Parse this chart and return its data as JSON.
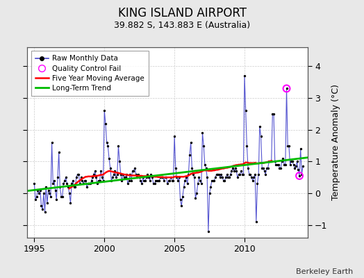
{
  "title": "KING ISLAND AIRPORT",
  "subtitle": "39.882 S, 143.883 E (Australia)",
  "ylabel": "Temperature Anomaly (°C)",
  "credit": "Berkeley Earth",
  "xlim": [
    1994.5,
    2014.5
  ],
  "ylim": [
    -1.4,
    4.6
  ],
  "yticks": [
    -1,
    0,
    1,
    2,
    3,
    4
  ],
  "xticks": [
    1995,
    2000,
    2005,
    2010
  ],
  "bg_color": "#e8e8e8",
  "plot_bg_color": "#ffffff",
  "raw_color": "#4444cc",
  "raw_dot_color": "#000000",
  "qc_fail_color": "#ff00ff",
  "moving_avg_color": "#ff0000",
  "trend_color": "#00bb00",
  "raw_monthly": [
    [
      1995.0,
      0.3
    ],
    [
      1995.083,
      -0.2
    ],
    [
      1995.167,
      -0.1
    ],
    [
      1995.25,
      0.1
    ],
    [
      1995.333,
      0.0
    ],
    [
      1995.417,
      0.1
    ],
    [
      1995.5,
      -0.4
    ],
    [
      1995.583,
      -0.5
    ],
    [
      1995.667,
      0.0
    ],
    [
      1995.75,
      -0.6
    ],
    [
      1995.833,
      0.2
    ],
    [
      1995.917,
      -0.3
    ],
    [
      1996.0,
      0.1
    ],
    [
      1996.083,
      0.0
    ],
    [
      1996.167,
      -0.1
    ],
    [
      1996.25,
      1.6
    ],
    [
      1996.333,
      0.3
    ],
    [
      1996.417,
      0.4
    ],
    [
      1996.5,
      0.1
    ],
    [
      1996.583,
      -0.2
    ],
    [
      1996.667,
      0.5
    ],
    [
      1996.75,
      1.3
    ],
    [
      1996.833,
      0.2
    ],
    [
      1996.917,
      -0.1
    ],
    [
      1997.0,
      -0.1
    ],
    [
      1997.083,
      0.3
    ],
    [
      1997.167,
      0.4
    ],
    [
      1997.25,
      0.5
    ],
    [
      1997.333,
      0.3
    ],
    [
      1997.417,
      0.2
    ],
    [
      1997.5,
      0.0
    ],
    [
      1997.583,
      -0.3
    ],
    [
      1997.667,
      0.3
    ],
    [
      1997.75,
      0.4
    ],
    [
      1997.833,
      0.2
    ],
    [
      1997.917,
      0.2
    ],
    [
      1998.0,
      0.5
    ],
    [
      1998.083,
      0.6
    ],
    [
      1998.167,
      0.6
    ],
    [
      1998.25,
      0.3
    ],
    [
      1998.333,
      0.5
    ],
    [
      1998.417,
      0.4
    ],
    [
      1998.5,
      0.3
    ],
    [
      1998.583,
      0.4
    ],
    [
      1998.667,
      0.4
    ],
    [
      1998.75,
      0.2
    ],
    [
      1998.833,
      0.3
    ],
    [
      1998.917,
      0.3
    ],
    [
      1999.0,
      0.3
    ],
    [
      1999.083,
      0.4
    ],
    [
      1999.167,
      0.5
    ],
    [
      1999.25,
      0.6
    ],
    [
      1999.333,
      0.7
    ],
    [
      1999.417,
      0.5
    ],
    [
      1999.5,
      0.3
    ],
    [
      1999.583,
      0.4
    ],
    [
      1999.667,
      0.4
    ],
    [
      1999.75,
      0.7
    ],
    [
      1999.833,
      0.5
    ],
    [
      1999.917,
      0.4
    ],
    [
      2000.0,
      2.6
    ],
    [
      2000.083,
      2.2
    ],
    [
      2000.167,
      1.6
    ],
    [
      2000.25,
      1.5
    ],
    [
      2000.333,
      1.1
    ],
    [
      2000.417,
      0.8
    ],
    [
      2000.5,
      0.4
    ],
    [
      2000.583,
      0.5
    ],
    [
      2000.667,
      0.6
    ],
    [
      2000.75,
      0.7
    ],
    [
      2000.833,
      0.5
    ],
    [
      2000.917,
      0.6
    ],
    [
      2001.0,
      1.5
    ],
    [
      2001.083,
      1.0
    ],
    [
      2001.167,
      0.6
    ],
    [
      2001.25,
      0.4
    ],
    [
      2001.333,
      0.6
    ],
    [
      2001.417,
      0.5
    ],
    [
      2001.5,
      0.5
    ],
    [
      2001.583,
      0.6
    ],
    [
      2001.667,
      0.3
    ],
    [
      2001.75,
      0.4
    ],
    [
      2001.833,
      0.6
    ],
    [
      2001.917,
      0.4
    ],
    [
      2002.0,
      0.7
    ],
    [
      2002.083,
      0.7
    ],
    [
      2002.167,
      0.8
    ],
    [
      2002.25,
      0.6
    ],
    [
      2002.333,
      0.5
    ],
    [
      2002.417,
      0.6
    ],
    [
      2002.5,
      0.5
    ],
    [
      2002.583,
      0.4
    ],
    [
      2002.667,
      0.3
    ],
    [
      2002.75,
      0.5
    ],
    [
      2002.833,
      0.4
    ],
    [
      2002.917,
      0.4
    ],
    [
      2003.0,
      0.5
    ],
    [
      2003.083,
      0.6
    ],
    [
      2003.167,
      0.5
    ],
    [
      2003.25,
      0.4
    ],
    [
      2003.333,
      0.6
    ],
    [
      2003.417,
      0.5
    ],
    [
      2003.5,
      0.3
    ],
    [
      2003.583,
      0.3
    ],
    [
      2003.667,
      0.4
    ],
    [
      2003.75,
      0.4
    ],
    [
      2003.833,
      0.4
    ],
    [
      2003.917,
      0.4
    ],
    [
      2004.0,
      0.5
    ],
    [
      2004.083,
      0.5
    ],
    [
      2004.167,
      0.5
    ],
    [
      2004.25,
      0.4
    ],
    [
      2004.333,
      0.5
    ],
    [
      2004.417,
      0.5
    ],
    [
      2004.5,
      0.3
    ],
    [
      2004.583,
      0.4
    ],
    [
      2004.667,
      0.4
    ],
    [
      2004.75,
      0.5
    ],
    [
      2004.833,
      0.4
    ],
    [
      2004.917,
      0.4
    ],
    [
      2005.0,
      1.8
    ],
    [
      2005.083,
      0.8
    ],
    [
      2005.167,
      0.5
    ],
    [
      2005.25,
      0.4
    ],
    [
      2005.333,
      0.5
    ],
    [
      2005.417,
      -0.2
    ],
    [
      2005.5,
      -0.4
    ],
    [
      2005.583,
      -0.1
    ],
    [
      2005.667,
      0.2
    ],
    [
      2005.75,
      0.4
    ],
    [
      2005.833,
      0.5
    ],
    [
      2005.917,
      0.3
    ],
    [
      2006.0,
      0.6
    ],
    [
      2006.083,
      1.2
    ],
    [
      2006.167,
      1.6
    ],
    [
      2006.25,
      0.8
    ],
    [
      2006.333,
      0.6
    ],
    [
      2006.417,
      0.5
    ],
    [
      2006.5,
      -0.15
    ],
    [
      2006.583,
      0.0
    ],
    [
      2006.667,
      0.3
    ],
    [
      2006.75,
      0.5
    ],
    [
      2006.833,
      0.4
    ],
    [
      2006.917,
      0.3
    ],
    [
      2007.0,
      1.9
    ],
    [
      2007.083,
      1.5
    ],
    [
      2007.167,
      0.9
    ],
    [
      2007.25,
      0.8
    ],
    [
      2007.333,
      0.5
    ],
    [
      2007.417,
      -1.2
    ],
    [
      2007.5,
      0.0
    ],
    [
      2007.583,
      0.2
    ],
    [
      2007.667,
      0.4
    ],
    [
      2007.75,
      0.4
    ],
    [
      2007.833,
      0.4
    ],
    [
      2007.917,
      0.5
    ],
    [
      2008.0,
      0.6
    ],
    [
      2008.083,
      0.6
    ],
    [
      2008.167,
      0.6
    ],
    [
      2008.25,
      0.5
    ],
    [
      2008.333,
      0.6
    ],
    [
      2008.417,
      0.5
    ],
    [
      2008.5,
      0.4
    ],
    [
      2008.583,
      0.4
    ],
    [
      2008.667,
      0.5
    ],
    [
      2008.75,
      0.6
    ],
    [
      2008.833,
      0.5
    ],
    [
      2008.917,
      0.5
    ],
    [
      2009.0,
      0.6
    ],
    [
      2009.083,
      0.7
    ],
    [
      2009.167,
      0.8
    ],
    [
      2009.25,
      0.7
    ],
    [
      2009.333,
      0.8
    ],
    [
      2009.417,
      0.7
    ],
    [
      2009.5,
      0.5
    ],
    [
      2009.583,
      0.6
    ],
    [
      2009.667,
      0.6
    ],
    [
      2009.75,
      0.7
    ],
    [
      2009.833,
      0.6
    ],
    [
      2009.917,
      0.6
    ],
    [
      2010.0,
      3.7
    ],
    [
      2010.083,
      2.6
    ],
    [
      2010.167,
      1.5
    ],
    [
      2010.25,
      0.8
    ],
    [
      2010.333,
      0.6
    ],
    [
      2010.417,
      0.6
    ],
    [
      2010.5,
      0.5
    ],
    [
      2010.583,
      0.4
    ],
    [
      2010.667,
      0.5
    ],
    [
      2010.75,
      0.6
    ],
    [
      2010.833,
      -0.9
    ],
    [
      2010.917,
      0.3
    ],
    [
      2011.0,
      0.6
    ],
    [
      2011.083,
      2.1
    ],
    [
      2011.167,
      1.8
    ],
    [
      2011.25,
      0.8
    ],
    [
      2011.333,
      0.8
    ],
    [
      2011.417,
      0.7
    ],
    [
      2011.5,
      0.6
    ],
    [
      2011.583,
      0.8
    ],
    [
      2011.667,
      0.8
    ],
    [
      2011.75,
      1.0
    ],
    [
      2011.833,
      1.0
    ],
    [
      2011.917,
      1.0
    ],
    [
      2012.0,
      2.5
    ],
    [
      2012.083,
      2.5
    ],
    [
      2012.167,
      1.0
    ],
    [
      2012.25,
      0.9
    ],
    [
      2012.333,
      0.9
    ],
    [
      2012.417,
      0.9
    ],
    [
      2012.5,
      0.8
    ],
    [
      2012.583,
      0.8
    ],
    [
      2012.667,
      1.0
    ],
    [
      2012.75,
      1.1
    ],
    [
      2012.833,
      0.9
    ],
    [
      2012.917,
      0.9
    ],
    [
      2013.0,
      3.3
    ],
    [
      2013.083,
      1.5
    ],
    [
      2013.167,
      1.5
    ],
    [
      2013.25,
      0.9
    ],
    [
      2013.333,
      1.0
    ],
    [
      2013.417,
      1.0
    ],
    [
      2013.5,
      0.9
    ],
    [
      2013.583,
      0.8
    ],
    [
      2013.667,
      0.85
    ],
    [
      2013.75,
      1.0
    ],
    [
      2013.833,
      0.75
    ],
    [
      2013.917,
      0.55
    ],
    [
      2014.0,
      1.4
    ],
    [
      2014.083,
      0.6
    ],
    [
      2014.167,
      0.85
    ]
  ],
  "qc_fail_points": [
    [
      2013.0,
      3.3
    ],
    [
      2013.917,
      0.55
    ]
  ],
  "moving_avg": [
    [
      1997.5,
      0.15
    ],
    [
      1997.583,
      0.18
    ],
    [
      1997.667,
      0.2
    ],
    [
      1997.75,
      0.22
    ],
    [
      1997.833,
      0.25
    ],
    [
      1997.917,
      0.28
    ],
    [
      1998.0,
      0.32
    ],
    [
      1998.083,
      0.35
    ],
    [
      1998.167,
      0.38
    ],
    [
      1998.25,
      0.4
    ],
    [
      1998.333,
      0.43
    ],
    [
      1998.417,
      0.46
    ],
    [
      1998.5,
      0.48
    ],
    [
      1998.583,
      0.5
    ],
    [
      1998.667,
      0.52
    ],
    [
      1998.75,
      0.52
    ],
    [
      1998.833,
      0.53
    ],
    [
      1998.917,
      0.53
    ],
    [
      1999.0,
      0.53
    ],
    [
      1999.083,
      0.53
    ],
    [
      1999.167,
      0.54
    ],
    [
      1999.25,
      0.54
    ],
    [
      1999.333,
      0.54
    ],
    [
      1999.417,
      0.55
    ],
    [
      1999.5,
      0.55
    ],
    [
      1999.583,
      0.56
    ],
    [
      1999.667,
      0.57
    ],
    [
      1999.75,
      0.58
    ],
    [
      1999.833,
      0.58
    ],
    [
      1999.917,
      0.59
    ],
    [
      2000.0,
      0.62
    ],
    [
      2000.083,
      0.65
    ],
    [
      2000.167,
      0.67
    ],
    [
      2000.25,
      0.69
    ],
    [
      2000.333,
      0.7
    ],
    [
      2000.417,
      0.7
    ],
    [
      2000.5,
      0.69
    ],
    [
      2000.583,
      0.68
    ],
    [
      2000.667,
      0.67
    ],
    [
      2000.75,
      0.66
    ],
    [
      2000.833,
      0.65
    ],
    [
      2000.917,
      0.65
    ],
    [
      2001.0,
      0.64
    ],
    [
      2001.083,
      0.63
    ],
    [
      2001.167,
      0.62
    ],
    [
      2001.25,
      0.61
    ],
    [
      2001.333,
      0.6
    ],
    [
      2001.417,
      0.59
    ],
    [
      2001.5,
      0.59
    ],
    [
      2001.583,
      0.58
    ],
    [
      2001.667,
      0.57
    ],
    [
      2001.75,
      0.57
    ],
    [
      2001.833,
      0.57
    ],
    [
      2001.917,
      0.56
    ],
    [
      2002.0,
      0.56
    ],
    [
      2002.083,
      0.56
    ],
    [
      2002.167,
      0.56
    ],
    [
      2002.25,
      0.56
    ],
    [
      2002.333,
      0.55
    ],
    [
      2002.417,
      0.55
    ],
    [
      2002.5,
      0.55
    ],
    [
      2002.583,
      0.55
    ],
    [
      2002.667,
      0.55
    ],
    [
      2002.75,
      0.54
    ],
    [
      2002.833,
      0.54
    ],
    [
      2002.917,
      0.54
    ],
    [
      2003.0,
      0.54
    ],
    [
      2003.083,
      0.54
    ],
    [
      2003.167,
      0.54
    ],
    [
      2003.25,
      0.53
    ],
    [
      2003.333,
      0.53
    ],
    [
      2003.417,
      0.53
    ],
    [
      2003.5,
      0.53
    ],
    [
      2003.583,
      0.52
    ],
    [
      2003.667,
      0.52
    ],
    [
      2003.75,
      0.52
    ],
    [
      2003.833,
      0.51
    ],
    [
      2003.917,
      0.51
    ],
    [
      2004.0,
      0.51
    ],
    [
      2004.083,
      0.51
    ],
    [
      2004.167,
      0.51
    ],
    [
      2004.25,
      0.5
    ],
    [
      2004.333,
      0.5
    ],
    [
      2004.417,
      0.5
    ],
    [
      2004.5,
      0.5
    ],
    [
      2004.583,
      0.5
    ],
    [
      2004.667,
      0.5
    ],
    [
      2004.75,
      0.5
    ],
    [
      2004.833,
      0.5
    ],
    [
      2004.917,
      0.5
    ],
    [
      2005.0,
      0.52
    ],
    [
      2005.083,
      0.53
    ],
    [
      2005.167,
      0.52
    ],
    [
      2005.25,
      0.52
    ],
    [
      2005.333,
      0.52
    ],
    [
      2005.417,
      0.52
    ],
    [
      2005.5,
      0.52
    ],
    [
      2005.583,
      0.52
    ],
    [
      2005.667,
      0.52
    ],
    [
      2005.75,
      0.53
    ],
    [
      2005.833,
      0.54
    ],
    [
      2005.917,
      0.54
    ],
    [
      2006.0,
      0.56
    ],
    [
      2006.083,
      0.58
    ],
    [
      2006.167,
      0.61
    ],
    [
      2006.25,
      0.62
    ],
    [
      2006.333,
      0.63
    ],
    [
      2006.417,
      0.64
    ],
    [
      2006.5,
      0.64
    ],
    [
      2006.583,
      0.65
    ],
    [
      2006.667,
      0.65
    ],
    [
      2006.75,
      0.66
    ],
    [
      2006.833,
      0.67
    ],
    [
      2006.917,
      0.68
    ],
    [
      2007.0,
      0.7
    ],
    [
      2007.083,
      0.72
    ],
    [
      2007.167,
      0.72
    ],
    [
      2007.25,
      0.72
    ],
    [
      2007.333,
      0.72
    ],
    [
      2007.417,
      0.71
    ],
    [
      2007.5,
      0.71
    ],
    [
      2007.583,
      0.71
    ],
    [
      2007.667,
      0.71
    ],
    [
      2007.75,
      0.72
    ],
    [
      2007.833,
      0.72
    ],
    [
      2007.917,
      0.73
    ],
    [
      2008.0,
      0.74
    ],
    [
      2008.083,
      0.74
    ],
    [
      2008.167,
      0.75
    ],
    [
      2008.25,
      0.76
    ],
    [
      2008.333,
      0.77
    ],
    [
      2008.417,
      0.78
    ],
    [
      2008.5,
      0.78
    ],
    [
      2008.583,
      0.79
    ],
    [
      2008.667,
      0.8
    ],
    [
      2008.75,
      0.8
    ],
    [
      2008.833,
      0.81
    ],
    [
      2008.917,
      0.82
    ],
    [
      2009.0,
      0.83
    ],
    [
      2009.083,
      0.84
    ],
    [
      2009.167,
      0.86
    ],
    [
      2009.25,
      0.87
    ],
    [
      2009.333,
      0.88
    ],
    [
      2009.417,
      0.89
    ],
    [
      2009.5,
      0.89
    ],
    [
      2009.583,
      0.9
    ],
    [
      2009.667,
      0.9
    ],
    [
      2009.75,
      0.91
    ],
    [
      2009.833,
      0.91
    ],
    [
      2009.917,
      0.92
    ],
    [
      2010.0,
      0.95
    ],
    [
      2010.083,
      0.97
    ],
    [
      2010.167,
      0.97
    ],
    [
      2010.25,
      0.96
    ],
    [
      2010.333,
      0.95
    ],
    [
      2010.417,
      0.95
    ],
    [
      2010.5,
      0.95
    ],
    [
      2010.583,
      0.95
    ],
    [
      2010.667,
      0.95
    ],
    [
      2010.75,
      0.96
    ],
    [
      2010.833,
      0.95
    ],
    [
      2010.917,
      0.94
    ],
    [
      2011.0,
      0.94
    ],
    [
      2011.083,
      0.95
    ],
    [
      2011.167,
      0.96
    ],
    [
      2011.25,
      0.95
    ],
    [
      2011.333,
      0.95
    ],
    [
      2011.417,
      0.96
    ],
    [
      2011.5,
      0.97
    ],
    [
      2011.583,
      0.98
    ],
    [
      2011.667,
      0.99
    ],
    [
      2011.75,
      1.0
    ],
    [
      2011.833,
      1.01
    ],
    [
      2011.917,
      1.02
    ]
  ],
  "trend_line": [
    [
      1994.5,
      0.075
    ],
    [
      2014.5,
      1.125
    ]
  ]
}
